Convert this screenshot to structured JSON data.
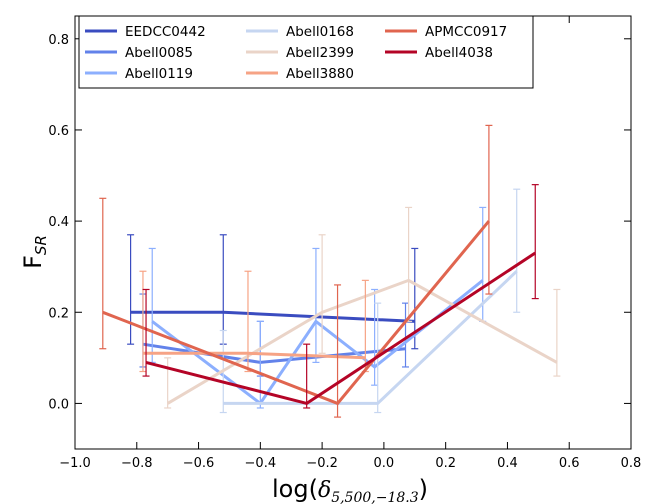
{
  "chart_data": {
    "type": "line",
    "title": "",
    "xlabel_main": "log(",
    "xlabel_delta": "δ",
    "xlabel_sub": "5,500,−18.3",
    "xlabel_close": ")",
    "ylabel_main": "F",
    "ylabel_sub": "SR",
    "xlim": [
      -1.0,
      0.8
    ],
    "ylim": [
      -0.1,
      0.85
    ],
    "xticks": [
      -1.0,
      -0.8,
      -0.6,
      -0.4,
      -0.2,
      0.0,
      0.2,
      0.4,
      0.6,
      0.8
    ],
    "xtick_labels": [
      "−1.0",
      "−0.8",
      "−0.6",
      "−0.4",
      "−0.2",
      "0.0",
      "0.2",
      "0.4",
      "0.6",
      "0.8"
    ],
    "yticks": [
      0.0,
      0.2,
      0.4,
      0.6,
      0.8
    ],
    "ytick_labels": [
      "0.0",
      "0.2",
      "0.4",
      "0.6",
      "0.8"
    ],
    "legend_placement": "top-left",
    "series": [
      {
        "name": "EEDCC0442",
        "color": "#3a4cc0",
        "points": [
          {
            "x": -0.82,
            "y": 0.2,
            "lo": 0.13,
            "hi": 0.37
          },
          {
            "x": -0.52,
            "y": 0.2,
            "lo": 0.13,
            "hi": 0.37
          },
          {
            "x": 0.1,
            "y": 0.18,
            "lo": 0.12,
            "hi": 0.34
          }
        ]
      },
      {
        "name": "Abell0085",
        "color": "#6282ea",
        "points": [
          {
            "x": -0.78,
            "y": 0.13,
            "lo": 0.08,
            "hi": 0.24
          },
          {
            "x": -0.4,
            "y": 0.09,
            "lo": 0.06,
            "hi": 0.18
          },
          {
            "x": 0.07,
            "y": 0.12,
            "lo": 0.08,
            "hi": 0.22
          }
        ]
      },
      {
        "name": "Abell0119",
        "color": "#8caffe",
        "points": [
          {
            "x": -0.75,
            "y": 0.18,
            "lo": 0.09,
            "hi": 0.34
          },
          {
            "x": -0.4,
            "y": 0.0,
            "lo": -0.01,
            "hi": 0.18
          },
          {
            "x": -0.22,
            "y": 0.18,
            "lo": 0.09,
            "hi": 0.34
          },
          {
            "x": -0.03,
            "y": 0.08,
            "lo": 0.04,
            "hi": 0.25
          },
          {
            "x": 0.32,
            "y": 0.27,
            "lo": 0.18,
            "hi": 0.43
          }
        ]
      },
      {
        "name": "Abell0168",
        "color": "#c6d6f1",
        "points": [
          {
            "x": -0.52,
            "y": 0.0,
            "lo": -0.02,
            "hi": 0.16
          },
          {
            "x": -0.02,
            "y": 0.0,
            "lo": -0.02,
            "hi": 0.22
          },
          {
            "x": 0.43,
            "y": 0.29,
            "lo": 0.2,
            "hi": 0.47
          }
        ]
      },
      {
        "name": "Abell2399",
        "color": "#ead4c8",
        "points": [
          {
            "x": -0.7,
            "y": 0.0,
            "lo": -0.01,
            "hi": 0.1
          },
          {
            "x": -0.2,
            "y": 0.2,
            "lo": 0.11,
            "hi": 0.37
          },
          {
            "x": 0.08,
            "y": 0.27,
            "lo": 0.18,
            "hi": 0.43
          },
          {
            "x": 0.56,
            "y": 0.09,
            "lo": 0.06,
            "hi": 0.25
          }
        ]
      },
      {
        "name": "Abell3880",
        "color": "#f6a385",
        "points": [
          {
            "x": -0.78,
            "y": 0.11,
            "lo": 0.07,
            "hi": 0.29
          },
          {
            "x": -0.44,
            "y": 0.11,
            "lo": 0.07,
            "hi": 0.29
          },
          {
            "x": -0.06,
            "y": 0.1,
            "lo": 0.07,
            "hi": 0.27
          }
        ]
      },
      {
        "name": "APMCC0917",
        "color": "#e0654f",
        "points": [
          {
            "x": -0.91,
            "y": 0.2,
            "lo": 0.12,
            "hi": 0.45
          },
          {
            "x": -0.15,
            "y": 0.0,
            "lo": -0.03,
            "hi": 0.26
          },
          {
            "x": 0.34,
            "y": 0.4,
            "lo": 0.24,
            "hi": 0.61
          }
        ]
      },
      {
        "name": "Abell4038",
        "color": "#b40426",
        "points": [
          {
            "x": -0.77,
            "y": 0.09,
            "lo": 0.06,
            "hi": 0.25
          },
          {
            "x": -0.25,
            "y": 0.0,
            "lo": -0.01,
            "hi": 0.13
          },
          {
            "x": 0.49,
            "y": 0.33,
            "lo": 0.23,
            "hi": 0.48
          }
        ]
      }
    ]
  }
}
